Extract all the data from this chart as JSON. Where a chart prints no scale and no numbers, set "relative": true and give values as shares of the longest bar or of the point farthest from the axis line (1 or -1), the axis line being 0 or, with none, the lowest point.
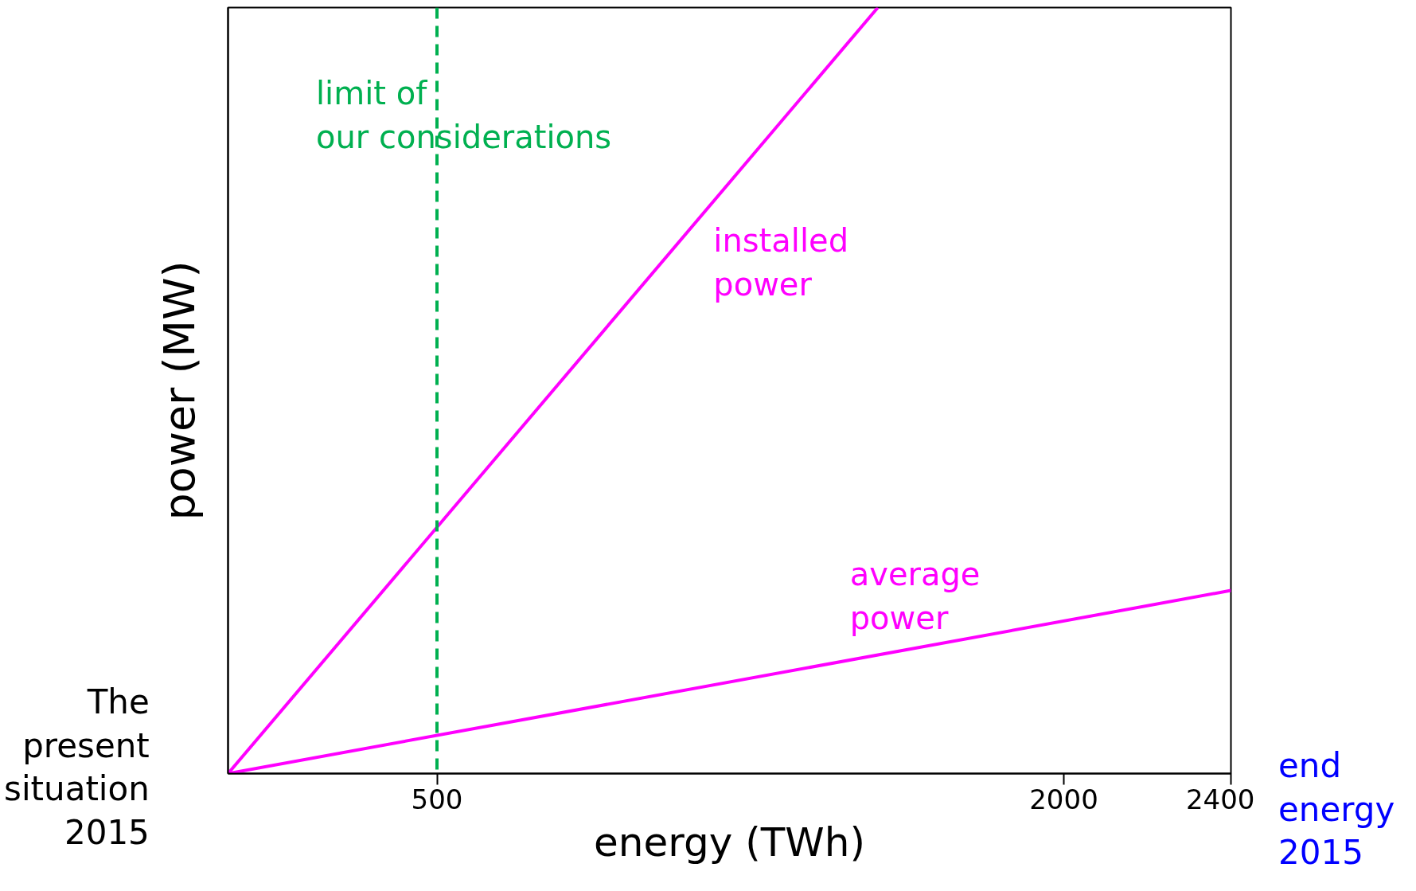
{
  "chart_data": {
    "type": "line",
    "xlabel": "energy (TWh)",
    "ylabel": "power (MW)",
    "relative": true,
    "xlim": [
      0,
      2400
    ],
    "xticks": [
      500,
      2000,
      2400
    ],
    "series": [
      {
        "name": "installed power",
        "color": "#ff00ff",
        "x": [
          0,
          1555
        ],
        "values": [
          0,
          1
        ]
      },
      {
        "name": "average power",
        "color": "#ff00ff",
        "x": [
          0,
          2400
        ],
        "values": [
          0,
          0.239
        ]
      }
    ],
    "ref_lines": [
      {
        "axis": "x",
        "value": 500,
        "label": "limit of our considerations",
        "color": "#00b050",
        "line_style": "dashed"
      }
    ],
    "annotations": [
      "The present situation 2015",
      "end energy 2015"
    ],
    "grid": false,
    "legend": false,
    "marker": "none",
    "line_style": "solid"
  }
}
